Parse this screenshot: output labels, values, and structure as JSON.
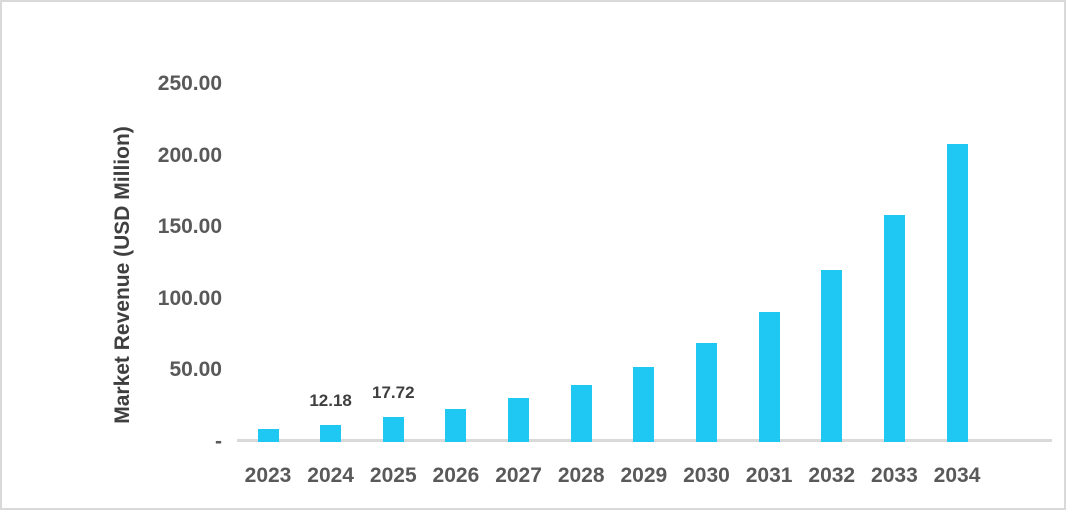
{
  "chart_data": {
    "type": "bar",
    "title": "",
    "xlabel": "",
    "ylabel": "Market Revenue (USD Million)",
    "categories": [
      "2023",
      "2024",
      "2025",
      "2026",
      "2027",
      "2028",
      "2029",
      "2030",
      "2031",
      "2032",
      "2033",
      "2034"
    ],
    "values": [
      9.3,
      12.18,
      17.72,
      23.1,
      30.4,
      40.0,
      52.5,
      69.2,
      91.0,
      120.0,
      158.3,
      208.4
    ],
    "data_labels": {
      "2024": "12.18",
      "2025": "17.72"
    },
    "y_ticks": [
      {
        "value": 250,
        "label": "250.00"
      },
      {
        "value": 200,
        "label": "200.00"
      },
      {
        "value": 150,
        "label": "150.00"
      },
      {
        "value": 100,
        "label": "100.00"
      },
      {
        "value": 50,
        "label": "50.00"
      },
      {
        "value": 0,
        "label": "-"
      }
    ],
    "ylim": [
      0,
      250
    ],
    "grid": false,
    "legend": false,
    "colors": {
      "bar": "#1EC8F2",
      "axis_line": "#D9D9D9",
      "tick_label": "#595959",
      "data_label": "#3F3F3F",
      "axis_title": "#3F3F3F",
      "frame_border": "#D9D9D9",
      "background": "#FFFFFF"
    }
  }
}
